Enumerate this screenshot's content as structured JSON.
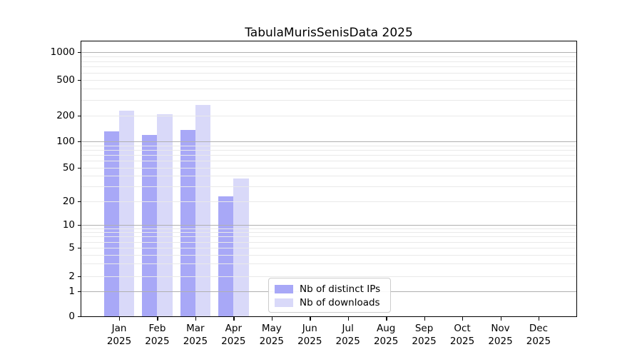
{
  "chart_data": {
    "type": "bar",
    "title": "TabulaMurisSenisData 2025",
    "categories": [
      "Jan",
      "Feb",
      "Mar",
      "Apr",
      "May",
      "Jun",
      "Jul",
      "Aug",
      "Sep",
      "Oct",
      "Nov",
      "Dec"
    ],
    "x_year_label": "2025",
    "series": [
      {
        "name": "Nb of distinct IPs",
        "color": "#a8a8f7",
        "values": [
          132,
          118,
          135,
          23,
          0,
          0,
          0,
          0,
          0,
          0,
          0,
          0
        ]
      },
      {
        "name": "Nb of downloads",
        "color": "#d9d9f9",
        "values": [
          228,
          206,
          265,
          37,
          0,
          0,
          0,
          0,
          0,
          0,
          0,
          0
        ]
      }
    ],
    "y_ticks": [
      0,
      1,
      2,
      5,
      10,
      20,
      50,
      100,
      200,
      500,
      1000
    ],
    "y_scale": "symlog",
    "ylim": [
      0,
      1300
    ],
    "xlabel": "",
    "ylabel": "",
    "grid": true,
    "legend_position": "inside lower center",
    "colors": {
      "major_grid": "#b0b0b0",
      "minor_grid": "#e9e9e9",
      "axis": "#000000",
      "background": "#ffffff"
    }
  }
}
